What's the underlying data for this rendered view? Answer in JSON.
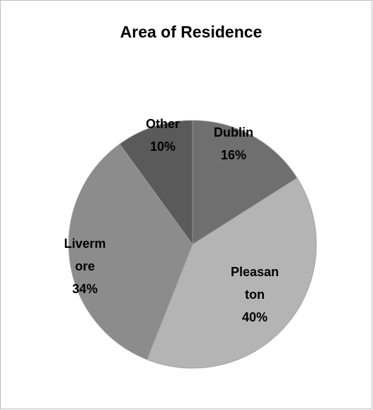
{
  "chart_data": {
    "type": "pie",
    "title": "Area of Residence",
    "categories": [
      "Dublin",
      "Pleasanton",
      "Livermore",
      "Other"
    ],
    "values": [
      16,
      40,
      34,
      10
    ],
    "value_labels": [
      "16%",
      "40%",
      "34%",
      "10%"
    ],
    "colors": [
      "#6f6f6f",
      "#b4b4b4",
      "#8c8c8c",
      "#5a5a5a"
    ]
  }
}
